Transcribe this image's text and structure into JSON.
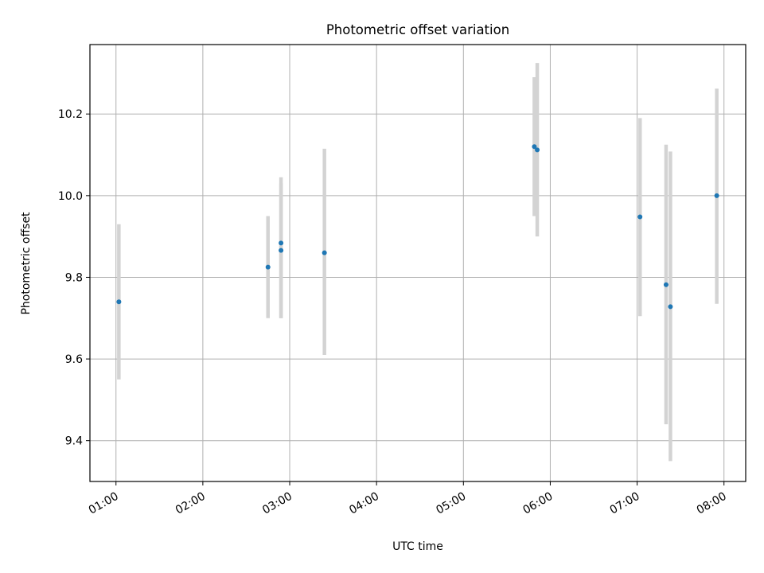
{
  "chart_data": {
    "type": "scatter",
    "title": "Photometric offset variation",
    "xlabel": "UTC time",
    "ylabel": "Photometric offset",
    "x_tick_labels": [
      "01:00",
      "02:00",
      "03:00",
      "04:00",
      "05:00",
      "06:00",
      "07:00",
      "08:00"
    ],
    "y_tick_labels": [
      "9.4",
      "9.6",
      "9.8",
      "10.0",
      "10.2"
    ],
    "y_ticks": [
      9.4,
      9.6,
      9.8,
      10.0,
      10.2
    ],
    "xlim": [
      "00:42",
      "08:15"
    ],
    "ylim": [
      9.3,
      10.37
    ],
    "grid": true,
    "colors": {
      "points": "#1f77b4",
      "error_bars": "#d3d3d3",
      "grid": "#b0b0b0"
    },
    "points": [
      {
        "x": "01:02",
        "y": 9.74,
        "y_low": 9.55,
        "y_high": 9.93
      },
      {
        "x": "02:45",
        "y": 9.825,
        "y_low": 9.7,
        "y_high": 9.95
      },
      {
        "x": "02:54",
        "y": 9.884,
        "y_low": 9.7,
        "y_high": 10.045
      },
      {
        "x": "02:54",
        "y": 9.866,
        "y_low": 9.7,
        "y_high": 10.03
      },
      {
        "x": "03:24",
        "y": 9.86,
        "y_low": 9.61,
        "y_high": 10.115
      },
      {
        "x": "05:49",
        "y": 10.12,
        "y_low": 9.95,
        "y_high": 10.29
      },
      {
        "x": "05:51",
        "y": 10.112,
        "y_low": 9.9,
        "y_high": 10.325
      },
      {
        "x": "07:02",
        "y": 9.948,
        "y_low": 9.705,
        "y_high": 10.19
      },
      {
        "x": "07:20",
        "y": 9.782,
        "y_low": 9.44,
        "y_high": 10.125
      },
      {
        "x": "07:23",
        "y": 9.728,
        "y_low": 9.35,
        "y_high": 10.108
      },
      {
        "x": "07:55",
        "y": 10.0,
        "y_low": 9.735,
        "y_high": 10.262
      }
    ]
  }
}
